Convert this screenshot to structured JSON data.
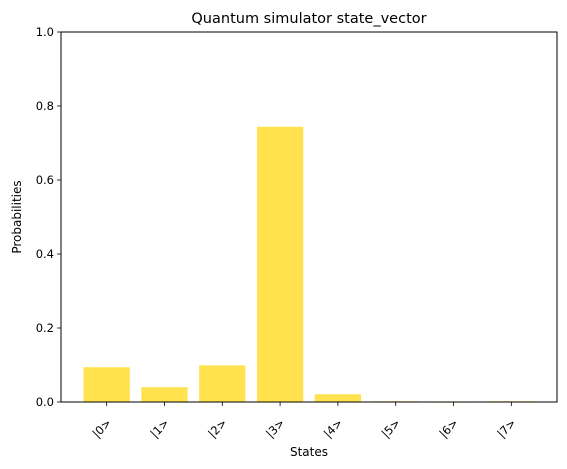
{
  "chart_data": {
    "type": "bar",
    "title": "Quantum simulator state_vector",
    "xlabel": "States",
    "ylabel": "Probabilities",
    "categories": [
      "|0>",
      "|1>",
      "|2>",
      "|3>",
      "|4>",
      "|5>",
      "|6>",
      "|7>"
    ],
    "values": [
      0.094,
      0.04,
      0.099,
      0.744,
      0.021,
      0.002,
      0.0,
      0.002
    ],
    "ylim": [
      0,
      1
    ],
    "yticks": [
      0.0,
      0.2,
      0.4,
      0.6,
      0.8,
      1.0
    ],
    "ytick_labels": [
      "0.0",
      "0.2",
      "0.4",
      "0.6",
      "0.8",
      "1.0"
    ],
    "grid": false,
    "bar_color": "#ffe24d"
  }
}
